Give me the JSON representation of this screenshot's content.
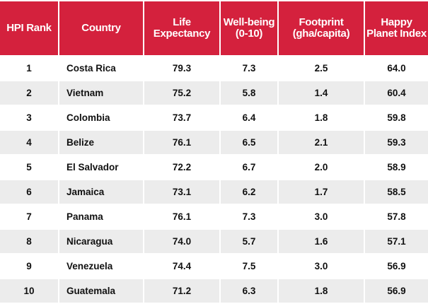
{
  "chart_data": {
    "type": "table",
    "columns": [
      {
        "key": "rank",
        "label": "HPI Rank"
      },
      {
        "key": "country",
        "label": "Country"
      },
      {
        "key": "life",
        "label": "Life Expectancy"
      },
      {
        "key": "wellbeing",
        "label": "Well-being (0-10)"
      },
      {
        "key": "footprint",
        "label": "Footprint (gha/capita)"
      },
      {
        "key": "hpi",
        "label": "Happy Planet Index"
      }
    ],
    "rows": [
      {
        "rank": "1",
        "country": "Costa Rica",
        "life": "79.3",
        "wellbeing": "7.3",
        "footprint": "2.5",
        "hpi": "64.0"
      },
      {
        "rank": "2",
        "country": "Vietnam",
        "life": "75.2",
        "wellbeing": "5.8",
        "footprint": "1.4",
        "hpi": "60.4"
      },
      {
        "rank": "3",
        "country": "Colombia",
        "life": "73.7",
        "wellbeing": "6.4",
        "footprint": "1.8",
        "hpi": "59.8"
      },
      {
        "rank": "4",
        "country": "Belize",
        "life": "76.1",
        "wellbeing": "6.5",
        "footprint": "2.1",
        "hpi": "59.3"
      },
      {
        "rank": "5",
        "country": "El Salvador",
        "life": "72.2",
        "wellbeing": "6.7",
        "footprint": "2.0",
        "hpi": "58.9"
      },
      {
        "rank": "6",
        "country": "Jamaica",
        "life": "73.1",
        "wellbeing": "6.2",
        "footprint": "1.7",
        "hpi": "58.5"
      },
      {
        "rank": "7",
        "country": "Panama",
        "life": "76.1",
        "wellbeing": "7.3",
        "footprint": "3.0",
        "hpi": "57.8"
      },
      {
        "rank": "8",
        "country": "Nicaragua",
        "life": "74.0",
        "wellbeing": "5.7",
        "footprint": "1.6",
        "hpi": "57.1"
      },
      {
        "rank": "9",
        "country": "Venezuela",
        "life": "74.4",
        "wellbeing": "7.5",
        "footprint": "3.0",
        "hpi": "56.9"
      },
      {
        "rank": "10",
        "country": "Guatemala",
        "life": "71.2",
        "wellbeing": "6.3",
        "footprint": "1.8",
        "hpi": "56.9"
      }
    ],
    "header_color": "#d4213d",
    "stripe_color": "#ececec"
  }
}
